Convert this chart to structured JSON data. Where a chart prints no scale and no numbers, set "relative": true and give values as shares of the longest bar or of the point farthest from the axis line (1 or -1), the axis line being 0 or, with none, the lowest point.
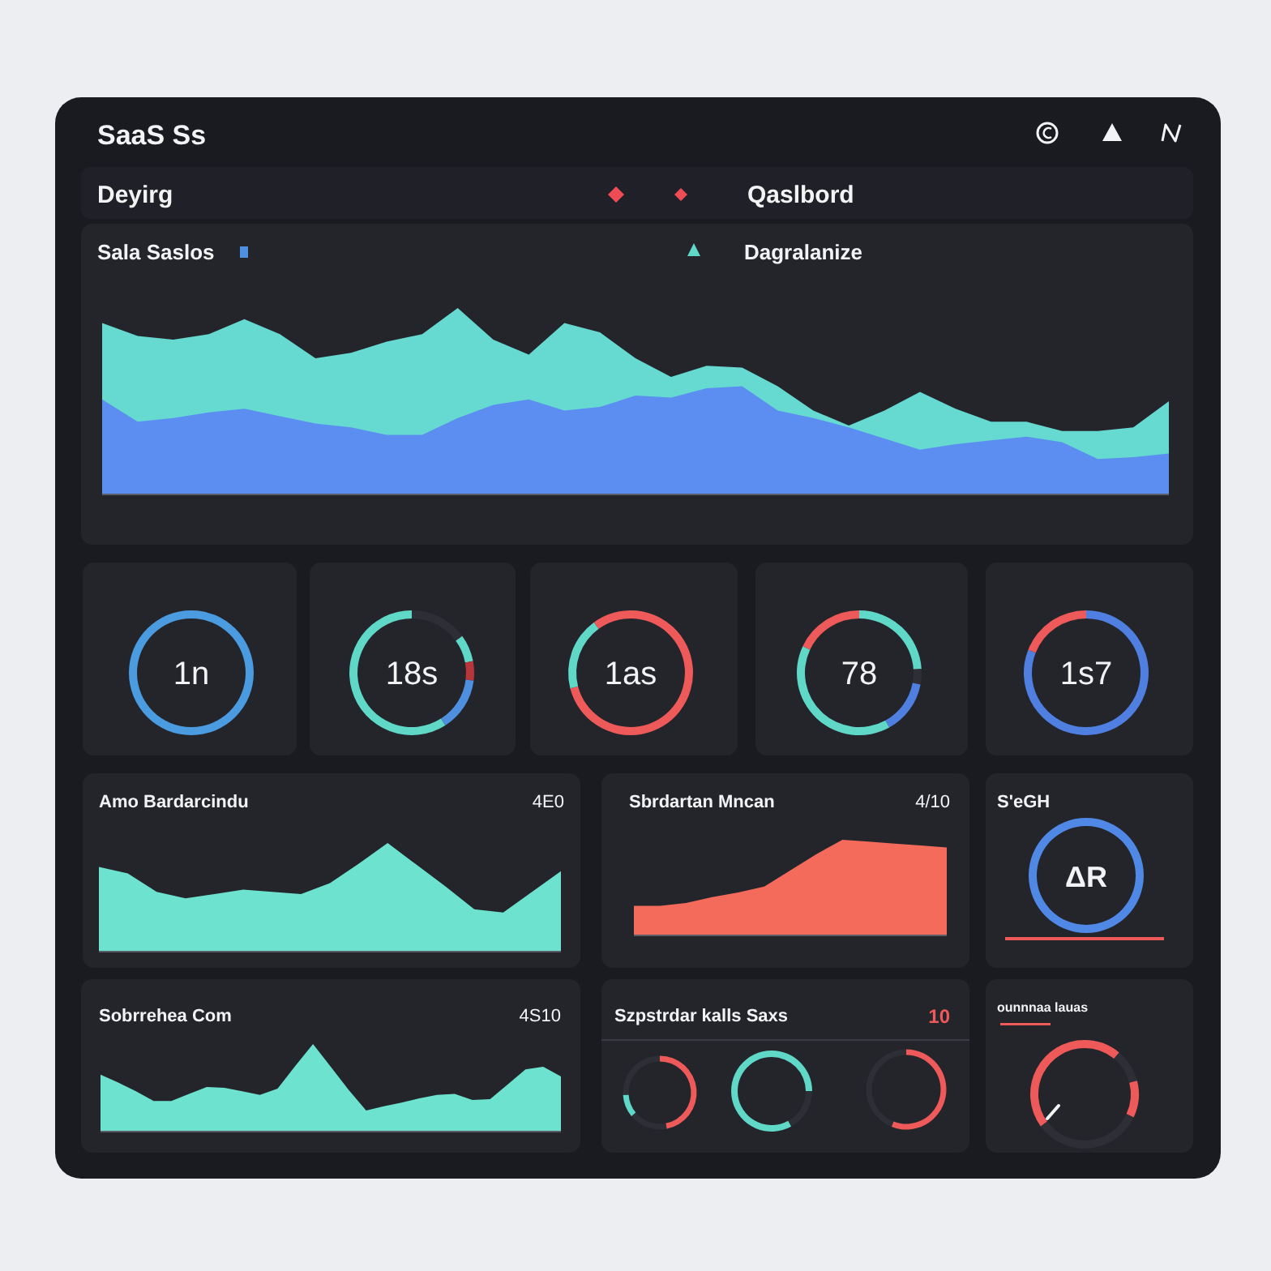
{
  "chart_data": [
    {
      "type": "other",
      "title": "SaaS Ss",
      "annotations": [
        "Deyirg",
        "Qaslbord"
      ]
    },
    {
      "type": "area",
      "title": "Sala Saslos",
      "subtitle": "Dagralanize",
      "relative": true,
      "categories": [
        null,
        null,
        null,
        null,
        null,
        null,
        null,
        null,
        null,
        null,
        null,
        null,
        null,
        null,
        null,
        null,
        null,
        null,
        null,
        null,
        null,
        null,
        null,
        null,
        null,
        null,
        null,
        null,
        null,
        null,
        null
      ],
      "series": [
        {
          "color": "#66d9d0",
          "values": [
            0.92,
            0.85,
            0.83,
            0.86,
            0.94,
            0.86,
            0.73,
            0.76,
            0.82,
            0.86,
            1,
            0.83,
            0.75,
            0.92,
            0.87,
            0.73,
            0.63,
            0.69,
            0.68,
            0.58,
            0.45,
            0.37,
            0.45,
            0.55,
            0.46,
            0.39,
            0.39,
            0.34,
            0.34,
            0.36,
            0.5
          ]
        },
        {
          "color": "#5b8ef0",
          "values": [
            0.51,
            0.39,
            0.41,
            0.44,
            0.46,
            0.42,
            0.38,
            0.36,
            0.32,
            0.32,
            0.41,
            0.48,
            0.51,
            0.45,
            0.47,
            0.53,
            0.52,
            0.57,
            0.58,
            0.45,
            0.41,
            0.36,
            0.3,
            0.24,
            0.27,
            0.29,
            0.31,
            0.28,
            0.19,
            0.2,
            0.22
          ]
        }
      ]
    },
    {
      "type": "donut",
      "categories": [
        null
      ],
      "values": [
        100
      ],
      "colors": [
        "#4a9be0"
      ],
      "annotations": [
        "1n"
      ]
    },
    {
      "type": "donut",
      "categories": [
        null,
        null,
        null,
        null,
        null
      ],
      "values": [
        15,
        7,
        5,
        14,
        59
      ],
      "colors": [
        "#2e2f36",
        "#5fd8c8",
        "#b8353c",
        "#4f8fe0",
        "#5fd8c8"
      ],
      "annotations": [
        "18s"
      ]
    },
    {
      "type": "donut",
      "categories": [
        null,
        null,
        null
      ],
      "values": [
        71,
        19,
        10
      ],
      "colors": [
        "#ee5a5a",
        "#5fd8c8",
        "#ee5a5a"
      ],
      "annotations": [
        "1as"
      ]
    },
    {
      "type": "donut",
      "categories": [
        null,
        null,
        null,
        null,
        null
      ],
      "values": [
        24,
        4,
        14,
        40,
        18
      ],
      "colors": [
        "#5fd8c8",
        "#2e2f36",
        "#4f7fe0",
        "#5fd8c8",
        "#ee5a5a"
      ],
      "annotations": [
        "78"
      ]
    },
    {
      "type": "donut",
      "categories": [
        null,
        null
      ],
      "values": [
        81,
        19
      ],
      "colors": [
        "#4f7fe0",
        "#ee5a5a"
      ],
      "annotations": [
        "1s7"
      ]
    },
    {
      "type": "area",
      "title": "Amo Bardarcindu",
      "annotations": [
        "4E0"
      ],
      "relative": true,
      "categories": [
        null,
        null,
        null,
        null,
        null,
        null,
        null,
        null,
        null,
        null,
        null,
        null,
        null,
        null,
        null,
        null,
        null
      ],
      "series": [
        {
          "color": "#6de3cf",
          "values": [
            0.78,
            0.72,
            0.55,
            0.49,
            0.53,
            0.57,
            0.55,
            0.53,
            0.63,
            0.81,
            1,
            0.8,
            0.6,
            0.39,
            0.36,
            0.55,
            0.74
          ]
        }
      ]
    },
    {
      "type": "area",
      "title": "Sbrdartan Mncan",
      "annotations": [
        "4/10"
      ],
      "relative": true,
      "categories": [
        null,
        null,
        null,
        null,
        null,
        null,
        null,
        null,
        null,
        null,
        null,
        null,
        null
      ],
      "series": [
        {
          "color": "#f46a5b",
          "values": [
            0.31,
            0.31,
            0.34,
            0.4,
            0.45,
            0.51,
            0.68,
            0.85,
            1,
            0.98,
            0.96,
            0.94,
            0.92
          ]
        }
      ]
    },
    {
      "type": "donut",
      "title": "S'eGH",
      "categories": [
        null
      ],
      "values": [
        100
      ],
      "colors": [
        "#5088e6"
      ],
      "annotations": [
        "ΔR"
      ]
    },
    {
      "type": "area",
      "title": "Sobrrehea Com",
      "annotations": [
        "4S10"
      ],
      "relative": true,
      "categories": [
        null,
        null,
        null,
        null,
        null,
        null,
        null,
        null,
        null,
        null,
        null,
        null,
        null,
        null,
        null,
        null,
        null,
        null,
        null,
        null,
        null,
        null,
        null,
        null,
        null,
        null,
        null
      ],
      "series": [
        {
          "color": "#6de3cf",
          "values": [
            0.65,
            0.56,
            0.46,
            0.35,
            0.35,
            0.43,
            0.51,
            0.5,
            0.46,
            0.42,
            0.49,
            0.75,
            1,
            0.74,
            0.48,
            0.24,
            0.29,
            0.33,
            0.38,
            0.42,
            0.43,
            0.36,
            0.37,
            0.54,
            0.71,
            0.74,
            0.63
          ]
        }
      ]
    },
    {
      "type": "donut",
      "title": "Szpstrdar kalls Saxs",
      "annotations": [
        "10"
      ],
      "categories": [
        null,
        null,
        null,
        null
      ],
      "values": [
        47,
        17,
        10,
        26
      ],
      "colors": [
        "#ee5a5a",
        "#2e2f36",
        "#5fd8c8",
        "#2e2f36"
      ]
    },
    {
      "type": "donut",
      "categories": [
        null,
        null,
        null
      ],
      "values": [
        25,
        17,
        58
      ],
      "colors": [
        "#5fd8c8",
        "#2e2f36",
        "#5fd8c8"
      ]
    },
    {
      "type": "donut",
      "categories": [
        null,
        null
      ],
      "values": [
        56,
        44
      ],
      "colors": [
        "#ee5a5a",
        "#2e2f36"
      ]
    },
    {
      "type": "donut",
      "title": "ounnnaa lauas",
      "categories": [
        null,
        null,
        null,
        null,
        null
      ],
      "values": [
        11,
        10,
        11,
        33,
        35
      ],
      "colors": [
        "#ee5a5a",
        "#2e2f36",
        "#ee5a5a",
        "#2e2f36",
        "#ee5a5a"
      ]
    }
  ]
}
